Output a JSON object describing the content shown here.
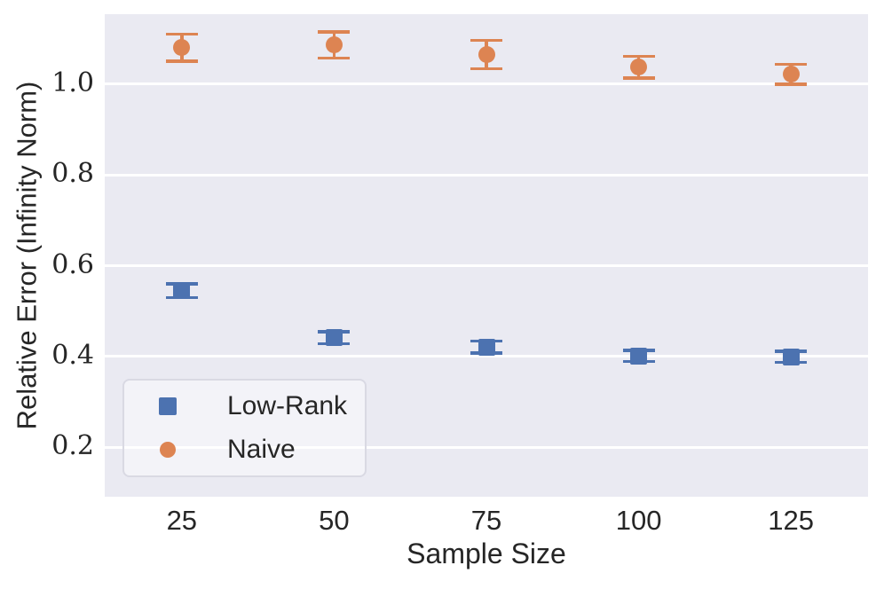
{
  "figure": {
    "background": "#ffffff",
    "axes_background": "#eaeaf2",
    "grid_color": "#ffffff",
    "text_color": "#262626"
  },
  "chart_data": {
    "type": "scatter",
    "subtype": "errorbar",
    "x": [
      25,
      50,
      75,
      100,
      125
    ],
    "series": [
      {
        "name": "Low-Rank",
        "marker": "square",
        "color": "#4c72b0",
        "values": [
          0.545,
          0.441,
          0.421,
          0.401,
          0.399
        ],
        "yerr": [
          0.015,
          0.013,
          0.013,
          0.012,
          0.012
        ]
      },
      {
        "name": "Naive",
        "marker": "circle",
        "color": "#dd8452",
        "values": [
          1.08,
          1.086,
          1.065,
          1.037,
          1.022
        ],
        "yerr": [
          0.03,
          0.029,
          0.031,
          0.024,
          0.022
        ]
      }
    ],
    "title": "",
    "xlabel": "Sample Size",
    "ylabel": "Relative Error (Infinity Norm)",
    "xticks": [
      25,
      50,
      75,
      100,
      125
    ],
    "xtick_labels": [
      "25",
      "50",
      "75",
      "100",
      "125"
    ],
    "yticks": [
      0.2,
      0.4,
      0.6,
      0.8,
      1.0
    ],
    "ytick_labels": [
      "0.2",
      "0.4",
      "0.6",
      "0.8",
      "1.0"
    ],
    "xlim": [
      12.35,
      137.65
    ],
    "ylim": [
      0.091,
      1.154
    ],
    "grid": "horizontal-only",
    "legend": {
      "position": "lower-left",
      "entries": [
        "Low-Rank",
        "Naive"
      ]
    }
  }
}
